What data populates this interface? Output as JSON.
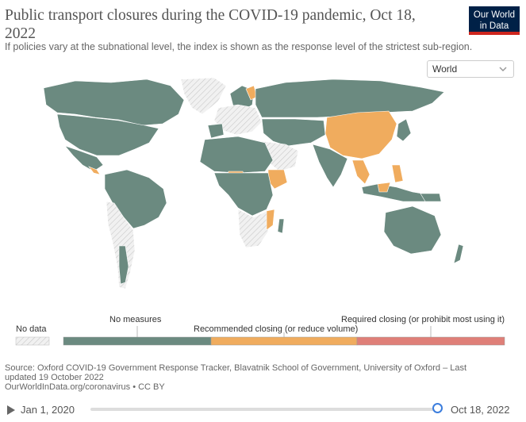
{
  "title": "Public transport closures during the COVID-19 pandemic, Oct 18, 2022",
  "subtitle": "If policies vary at the subnational level, the index is shown as the response level of the strictest sub-region.",
  "logo": {
    "line1": "Our World",
    "line2": "in Data"
  },
  "region_select": {
    "value": "World"
  },
  "colors": {
    "no_measures": "#6b8a80",
    "recommended": "#f0ac5e",
    "required": "#df7f78",
    "ocean": "#ffffff",
    "no_data": "#e8e8e8"
  },
  "legend": {
    "no_data": "No data",
    "no_measures": "No measures",
    "recommended": "Recommended closing (or reduce volume)",
    "required": "Required closing (or prohibit most using it)"
  },
  "source": {
    "line1": "Source: Oxford COVID-19 Government Response Tracker, Blavatnik School of Government, University of Oxford – Last updated 19 October 2022",
    "line2": "OurWorldInData.org/coronavirus • CC BY"
  },
  "timeline": {
    "start": "Jan 1, 2020",
    "end": "Oct 18, 2022"
  }
}
